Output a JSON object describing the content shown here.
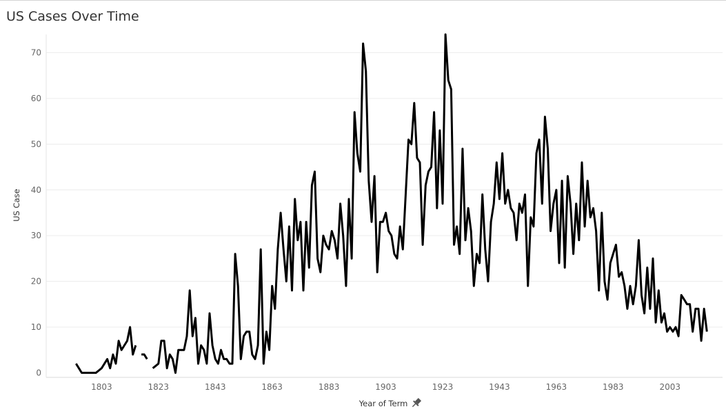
{
  "chart_data": {
    "type": "line",
    "title": "US Cases Over Time",
    "xlabel": "Year of Term",
    "ylabel": "US Case",
    "pin_icon": "pin-icon",
    "xlim": [
      1783.5,
      2021.5
    ],
    "ylim": [
      -1,
      74
    ],
    "x_ticks": [
      1803,
      1823,
      1843,
      1863,
      1883,
      1903,
      1923,
      1943,
      1963,
      1983,
      2003
    ],
    "y_ticks": [
      0,
      10,
      20,
      30,
      40,
      50,
      60,
      70
    ],
    "grid": true,
    "line_color": "#000000",
    "series": [
      {
        "segments": [
          [
            [
              1794,
              2
            ],
            [
              1795,
              1
            ],
            [
              1796,
              0
            ],
            [
              1797,
              0
            ],
            [
              1798,
              0
            ],
            [
              1799,
              0
            ],
            [
              1800,
              0
            ],
            [
              1801,
              0
            ],
            [
              1802,
              0.5
            ],
            [
              1803,
              1
            ],
            [
              1804,
              2
            ],
            [
              1805,
              3
            ],
            [
              1806,
              1
            ],
            [
              1807,
              4
            ],
            [
              1808,
              2
            ],
            [
              1809,
              7
            ],
            [
              1810,
              5
            ],
            [
              1811,
              6
            ],
            [
              1812,
              7
            ],
            [
              1813,
              10
            ],
            [
              1814,
              4
            ],
            [
              1815,
              6
            ]
          ],
          [
            [
              1817,
              4
            ],
            [
              1818,
              4
            ],
            [
              1819,
              3
            ]
          ],
          [
            [
              1821,
              1
            ],
            [
              1822,
              1.5
            ],
            [
              1823,
              2
            ],
            [
              1824,
              7
            ],
            [
              1825,
              7
            ],
            [
              1826,
              1
            ],
            [
              1827,
              4
            ],
            [
              1828,
              3
            ],
            [
              1829,
              0
            ],
            [
              1830,
              5
            ],
            [
              1831,
              5
            ],
            [
              1832,
              5
            ],
            [
              1833,
              8
            ],
            [
              1834,
              18
            ],
            [
              1835,
              8
            ],
            [
              1836,
              12
            ],
            [
              1837,
              2
            ],
            [
              1838,
              6
            ],
            [
              1839,
              5
            ],
            [
              1840,
              2
            ],
            [
              1841,
              13
            ],
            [
              1842,
              6
            ],
            [
              1843,
              3
            ],
            [
              1844,
              2
            ],
            [
              1845,
              5
            ],
            [
              1846,
              3
            ],
            [
              1847,
              3
            ],
            [
              1848,
              2
            ],
            [
              1849,
              2
            ],
            [
              1850,
              26
            ],
            [
              1851,
              19
            ],
            [
              1852,
              3
            ],
            [
              1853,
              8
            ],
            [
              1854,
              9
            ],
            [
              1855,
              9
            ],
            [
              1856,
              4
            ],
            [
              1857,
              3
            ],
            [
              1858,
              6
            ],
            [
              1859,
              27
            ],
            [
              1860,
              2
            ],
            [
              1861,
              9
            ],
            [
              1862,
              5
            ],
            [
              1863,
              19
            ],
            [
              1864,
              14
            ],
            [
              1865,
              27
            ],
            [
              1866,
              35
            ],
            [
              1867,
              27
            ],
            [
              1868,
              20
            ],
            [
              1869,
              32
            ],
            [
              1870,
              18
            ],
            [
              1871,
              38
            ],
            [
              1872,
              29
            ],
            [
              1873,
              33
            ],
            [
              1874,
              18
            ],
            [
              1875,
              33
            ],
            [
              1876,
              23
            ],
            [
              1877,
              41
            ],
            [
              1878,
              44
            ],
            [
              1879,
              25
            ],
            [
              1880,
              22
            ],
            [
              1881,
              30
            ],
            [
              1882,
              28
            ],
            [
              1883,
              27
            ],
            [
              1884,
              31
            ],
            [
              1885,
              29
            ],
            [
              1886,
              25
            ],
            [
              1887,
              37
            ],
            [
              1888,
              30
            ],
            [
              1889,
              19
            ],
            [
              1890,
              38
            ],
            [
              1891,
              25
            ],
            [
              1892,
              57
            ],
            [
              1893,
              48
            ],
            [
              1894,
              44
            ],
            [
              1895,
              72
            ],
            [
              1896,
              66
            ],
            [
              1897,
              42
            ],
            [
              1898,
              33
            ],
            [
              1899,
              43
            ],
            [
              1900,
              22
            ],
            [
              1901,
              33
            ],
            [
              1902,
              33
            ],
            [
              1903,
              35
            ],
            [
              1904,
              31
            ],
            [
              1905,
              30
            ],
            [
              1906,
              26
            ],
            [
              1907,
              25
            ],
            [
              1908,
              32
            ],
            [
              1909,
              27
            ],
            [
              1910,
              39
            ],
            [
              1911,
              51
            ],
            [
              1912,
              50
            ],
            [
              1913,
              59
            ],
            [
              1914,
              47
            ],
            [
              1915,
              46
            ],
            [
              1916,
              28
            ],
            [
              1917,
              41
            ],
            [
              1918,
              44
            ],
            [
              1919,
              45
            ],
            [
              1920,
              57
            ],
            [
              1921,
              36
            ],
            [
              1922,
              53
            ],
            [
              1923,
              37
            ],
            [
              1924,
              74
            ],
            [
              1925,
              64
            ],
            [
              1926,
              62
            ],
            [
              1927,
              28
            ],
            [
              1928,
              32
            ],
            [
              1929,
              26
            ],
            [
              1930,
              49
            ],
            [
              1931,
              29
            ],
            [
              1932,
              36
            ],
            [
              1933,
              31
            ],
            [
              1934,
              19
            ],
            [
              1935,
              26
            ],
            [
              1936,
              24
            ],
            [
              1937,
              39
            ],
            [
              1938,
              27
            ],
            [
              1939,
              20
            ],
            [
              1940,
              33
            ],
            [
              1941,
              37
            ],
            [
              1942,
              46
            ],
            [
              1943,
              38
            ],
            [
              1944,
              48
            ],
            [
              1945,
              37
            ],
            [
              1946,
              40
            ],
            [
              1947,
              36
            ],
            [
              1948,
              35
            ],
            [
              1949,
              29
            ],
            [
              1950,
              37
            ],
            [
              1951,
              35
            ],
            [
              1952,
              39
            ],
            [
              1953,
              19
            ],
            [
              1954,
              34
            ],
            [
              1955,
              32
            ],
            [
              1956,
              48
            ],
            [
              1957,
              51
            ],
            [
              1958,
              37
            ],
            [
              1959,
              56
            ],
            [
              1960,
              49
            ],
            [
              1961,
              31
            ],
            [
              1962,
              37
            ],
            [
              1963,
              40
            ],
            [
              1964,
              24
            ],
            [
              1965,
              42
            ],
            [
              1966,
              23
            ],
            [
              1967,
              43
            ],
            [
              1968,
              37
            ],
            [
              1969,
              26
            ],
            [
              1970,
              37
            ],
            [
              1971,
              29
            ],
            [
              1972,
              46
            ],
            [
              1973,
              32
            ],
            [
              1974,
              42
            ],
            [
              1975,
              34
            ],
            [
              1976,
              36
            ],
            [
              1977,
              31
            ],
            [
              1978,
              18
            ],
            [
              1979,
              35
            ],
            [
              1980,
              20
            ],
            [
              1981,
              16
            ],
            [
              1982,
              24
            ],
            [
              1983,
              26
            ],
            [
              1984,
              28
            ],
            [
              1985,
              21
            ],
            [
              1986,
              22
            ],
            [
              1987,
              19
            ],
            [
              1988,
              14
            ],
            [
              1989,
              19
            ],
            [
              1990,
              15
            ],
            [
              1991,
              19
            ],
            [
              1992,
              29
            ],
            [
              1993,
              17
            ],
            [
              1994,
              13
            ],
            [
              1995,
              23
            ],
            [
              1996,
              14
            ],
            [
              1997,
              25
            ],
            [
              1998,
              11
            ],
            [
              1999,
              18
            ],
            [
              2000,
              11
            ],
            [
              2001,
              13
            ],
            [
              2002,
              9
            ],
            [
              2003,
              10
            ],
            [
              2004,
              9
            ],
            [
              2005,
              10
            ],
            [
              2006,
              8
            ],
            [
              2007,
              17
            ],
            [
              2008,
              16
            ],
            [
              2009,
              15
            ],
            [
              2010,
              15
            ],
            [
              2011,
              9
            ],
            [
              2012,
              14
            ],
            [
              2013,
              14
            ],
            [
              2014,
              7
            ],
            [
              2015,
              14
            ],
            [
              2016,
              9
            ]
          ]
        ]
      }
    ]
  }
}
